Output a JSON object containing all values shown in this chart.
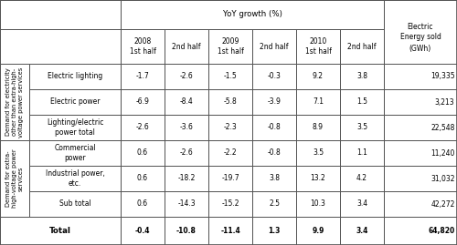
{
  "row_group1_label": "Demand for electricity\nother than extra-high-\nvoltage power services",
  "row_group2_label": "Demand for extra-\nhigh-voltage power\nservices",
  "rows": [
    {
      "group": 1,
      "label": "Electric lighting",
      "values": [
        "-1.7",
        "-2.6",
        "-1.5",
        "-0.3",
        "9.2",
        "3.8",
        "19,335"
      ],
      "bold": false
    },
    {
      "group": 1,
      "label": "Electric power",
      "values": [
        "-6.9",
        "-8.4",
        "-5.8",
        "-3.9",
        "7.1",
        "1.5",
        "3,213"
      ],
      "bold": false
    },
    {
      "group": 1,
      "label": "Lighting/electric\npower total",
      "values": [
        "-2.6",
        "-3.6",
        "-2.3",
        "-0.8",
        "8.9",
        "3.5",
        "22,548"
      ],
      "bold": false
    },
    {
      "group": 2,
      "label": "Commercial\npower",
      "values": [
        "0.6",
        "-2.6",
        "-2.2",
        "-0.8",
        "3.5",
        "1.1",
        "11,240"
      ],
      "bold": false
    },
    {
      "group": 2,
      "label": "Industrial power,\netc.",
      "values": [
        "0.6",
        "-18.2",
        "-19.7",
        "3.8",
        "13.2",
        "4.2",
        "31,032"
      ],
      "bold": false
    },
    {
      "group": 2,
      "label": "Sub total",
      "values": [
        "0.6",
        "-14.3",
        "-15.2",
        "2.5",
        "10.3",
        "3.4",
        "42,272"
      ],
      "bold": false
    }
  ],
  "total_row": {
    "label": "Total",
    "values": [
      "-0.4",
      "-10.8",
      "-11.4",
      "1.3",
      "9.9",
      "3.4",
      "64,820"
    ]
  },
  "half_labels": [
    "2008\n1st half",
    "2nd half",
    "2009\n1st half",
    "2nd half",
    "2010\n1st half",
    "2nd half"
  ],
  "bg_color": "#ffffff",
  "line_color": "#555555",
  "text_color": "#000000",
  "fs_tiny": 4.8,
  "fs_small": 5.5,
  "fs_mid": 6.2
}
